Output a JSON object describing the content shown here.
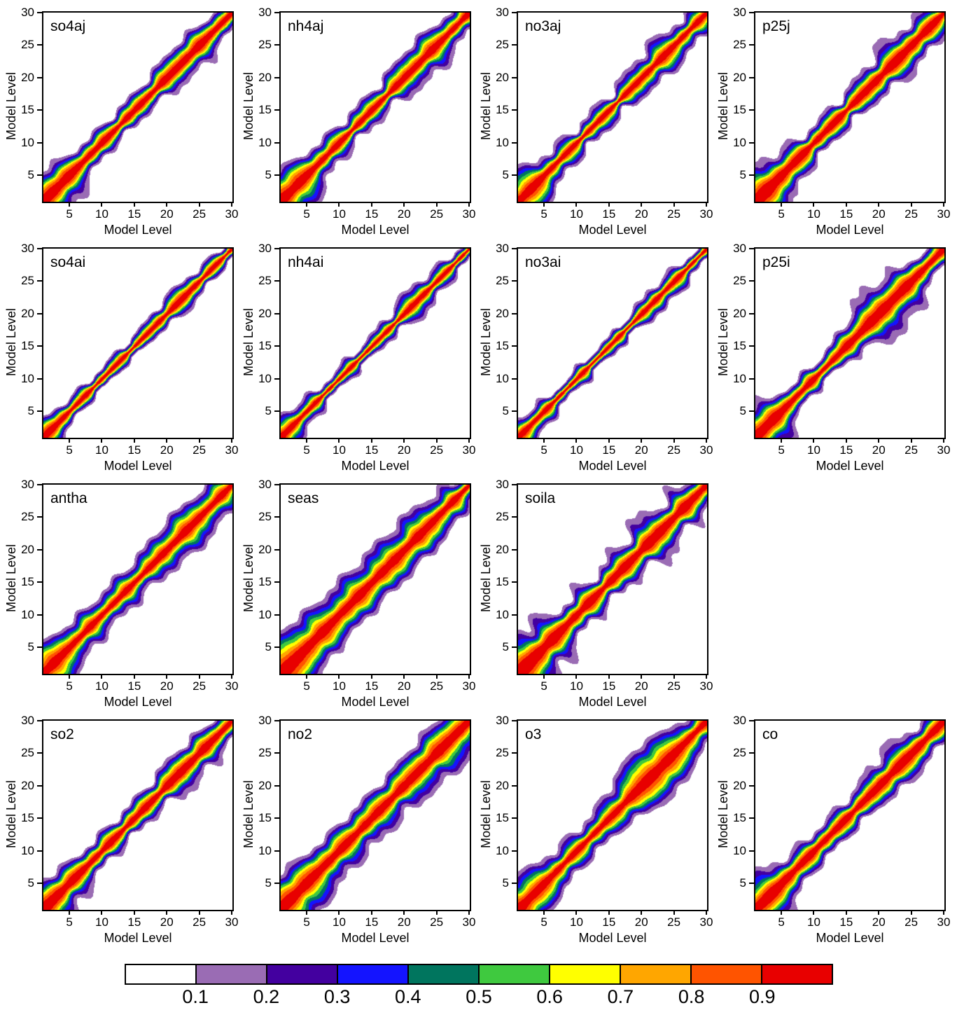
{
  "chart_data": {
    "type": "heatmap",
    "title": "",
    "description": "Grid of filled-contour correlation plots between model levels for 15 chemical species; diagonal band of high correlation (red) decaying off-diagonal through orange, yellow, green, blue and purple to white.",
    "axis": {
      "xlabel": "Model Level",
      "ylabel": "Model Level",
      "range": [
        1,
        30
      ],
      "ticks": [
        5,
        10,
        15,
        20,
        25,
        30
      ]
    },
    "colorbar": {
      "levels": [
        0.1,
        0.2,
        0.3,
        0.4,
        0.5,
        0.6,
        0.7,
        0.8,
        0.9
      ],
      "labels": [
        "0.1",
        "0.2",
        "0.3",
        "0.4",
        "0.5",
        "0.6",
        "0.7",
        "0.8",
        "0.9"
      ],
      "colors": [
        "#ffffff",
        "#9a6cb4",
        "#43009f",
        "#1414ff",
        "#00755e",
        "#3fc93f",
        "#ffff00",
        "#ffa600",
        "#ff5400",
        "#e80000"
      ]
    },
    "panels": [
      {
        "label": "so4aj",
        "row": 1,
        "col": 1,
        "field": {
          "base": 1.7,
          "lowA": 2.4,
          "lowScale": 4.5,
          "highA": 0.9,
          "highCenter": 23,
          "highWidth": 4,
          "noise": 0.38,
          "seed": 1.3
        }
      },
      {
        "label": "nh4aj",
        "row": 1,
        "col": 2,
        "field": {
          "base": 1.7,
          "lowA": 2.6,
          "lowScale": 4.5,
          "highA": 0.9,
          "highCenter": 23,
          "highWidth": 4,
          "noise": 0.4,
          "seed": 2.1
        }
      },
      {
        "label": "no3aj",
        "row": 1,
        "col": 3,
        "field": {
          "base": 1.55,
          "lowA": 2.3,
          "lowScale": 4.0,
          "highA": 0.8,
          "highCenter": 23,
          "highWidth": 4,
          "noise": 0.42,
          "seed": 3.2
        }
      },
      {
        "label": "p25j",
        "row": 1,
        "col": 4,
        "field": {
          "base": 1.9,
          "lowA": 2.7,
          "lowScale": 5.0,
          "highA": 1.0,
          "highCenter": 23,
          "highWidth": 5,
          "noise": 0.5,
          "seed": 4.4
        }
      },
      {
        "label": "so4ai",
        "row": 2,
        "col": 1,
        "field": {
          "base": 1.05,
          "lowA": 1.3,
          "lowScale": 3.5,
          "highA": 0.8,
          "highCenter": 22,
          "highWidth": 3.5,
          "noise": 0.33,
          "seed": 5.1
        }
      },
      {
        "label": "nh4ai",
        "row": 2,
        "col": 2,
        "field": {
          "base": 1.05,
          "lowA": 1.5,
          "lowScale": 3.5,
          "highA": 0.8,
          "highCenter": 22,
          "highWidth": 3.5,
          "noise": 0.33,
          "seed": 6.3
        }
      },
      {
        "label": "no3ai",
        "row": 2,
        "col": 3,
        "field": {
          "base": 1.0,
          "lowA": 1.3,
          "lowScale": 3.5,
          "highA": 0.7,
          "highCenter": 23,
          "highWidth": 3,
          "noise": 0.36,
          "seed": 7.2
        }
      },
      {
        "label": "p25i",
        "row": 2,
        "col": 4,
        "field": {
          "base": 1.35,
          "lowA": 2.9,
          "lowScale": 4.5,
          "highA": 2.3,
          "highCenter": 21,
          "highWidth": 5.5,
          "noise": 0.42,
          "seed": 8.6
        }
      },
      {
        "label": "antha",
        "row": 3,
        "col": 1,
        "field": {
          "base": 2.0,
          "lowA": 2.0,
          "lowScale": 4.0,
          "highA": 0.9,
          "highCenter": 23,
          "highWidth": 4,
          "noise": 0.38,
          "seed": 9.9
        }
      },
      {
        "label": "seas",
        "row": 3,
        "col": 2,
        "field": {
          "base": 3.1,
          "lowA": 2.0,
          "lowScale": 5.0,
          "highA": -1.6,
          "highCenter": 30,
          "highWidth": 4,
          "noise": 0.45,
          "seed": 10.7
        }
      },
      {
        "label": "soila",
        "row": 3,
        "col": 3,
        "field": {
          "base": 2.3,
          "lowA": 3.0,
          "lowScale": 5.0,
          "highA": 0.9,
          "highCenter": 22,
          "highWidth": 4,
          "noise": 0.65,
          "seed": 11.8
        }
      },
      {
        "label": "so2",
        "row": 4,
        "col": 1,
        "field": {
          "base": 1.8,
          "lowA": 2.2,
          "lowScale": 4.5,
          "highA": 0.9,
          "highCenter": 23,
          "highWidth": 4,
          "noise": 0.45,
          "seed": 12.5
        }
      },
      {
        "label": "no2",
        "row": 4,
        "col": 2,
        "field": {
          "base": 2.7,
          "lowA": 2.0,
          "lowScale": 5.0,
          "highA": 0.8,
          "highCenter": 26,
          "highWidth": 5,
          "noise": 0.4,
          "seed": 13.1
        }
      },
      {
        "label": "o3",
        "row": 4,
        "col": 3,
        "field": {
          "base": 1.9,
          "lowA": 2.2,
          "lowScale": 4.5,
          "highA": 2.6,
          "highCenter": 22,
          "highWidth": 4.5,
          "noise": 0.35,
          "seed": 14.2
        }
      },
      {
        "label": "co",
        "row": 4,
        "col": 4,
        "field": {
          "base": 2.0,
          "lowA": 2.4,
          "lowScale": 4.5,
          "highA": 1.0,
          "highCenter": 23,
          "highWidth": 4,
          "noise": 0.4,
          "seed": 15.3
        }
      }
    ]
  }
}
